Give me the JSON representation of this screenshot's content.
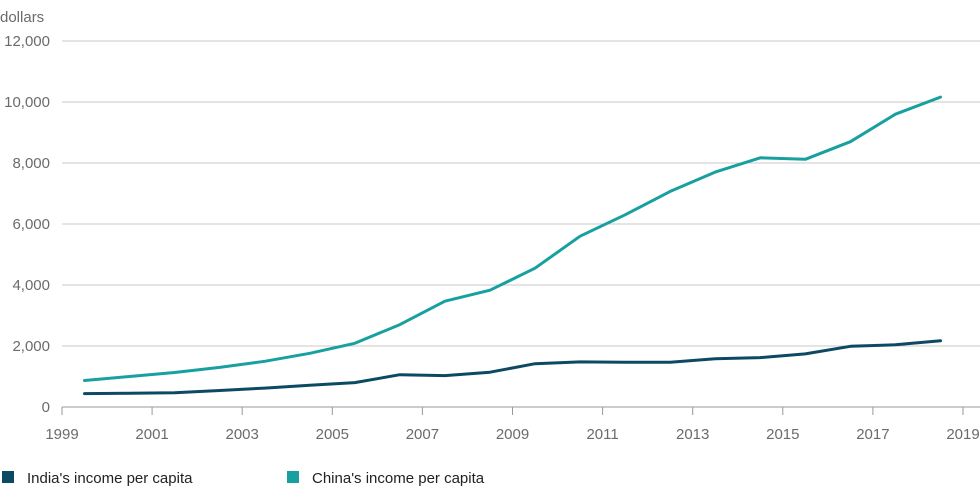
{
  "chart_data": {
    "type": "line",
    "title": "",
    "xlabel": "",
    "ylabel": "dollars",
    "ylim": [
      0,
      12000
    ],
    "xlim": [
      1999,
      2019
    ],
    "y_ticks": [
      "0",
      "2,000",
      "4,000",
      "6,000",
      "8,000",
      "10,000",
      "12,000"
    ],
    "x_ticks": [
      "1999",
      "2001",
      "2003",
      "2005",
      "2007",
      "2009",
      "2011",
      "2013",
      "2015",
      "2017",
      "2019"
    ],
    "grid": "horizontal",
    "legend_position": "bottom-left",
    "series": [
      {
        "name": "India's income per capita",
        "color": "#0c4a63",
        "x": [
          2000,
          2001,
          2002,
          2003,
          2004,
          2005,
          2006,
          2007,
          2008,
          2009,
          2010,
          2011,
          2012,
          2013,
          2014,
          2015,
          2016,
          2017,
          2018,
          2019
        ],
        "y": [
          440,
          450,
          470,
          540,
          620,
          710,
          800,
          1060,
          1030,
          1140,
          1420,
          1480,
          1470,
          1470,
          1580,
          1620,
          1740,
          1990,
          2040,
          2170
        ]
      },
      {
        "name": "China's income per capita",
        "color": "#18a0a0",
        "x": [
          2000,
          2001,
          2002,
          2003,
          2004,
          2005,
          2006,
          2007,
          2008,
          2009,
          2010,
          2011,
          2012,
          2013,
          2014,
          2015,
          2016,
          2017,
          2018,
          2019
        ],
        "y": [
          870,
          1000,
          1130,
          1300,
          1500,
          1760,
          2090,
          2700,
          3470,
          3830,
          4550,
          5600,
          6300,
          7070,
          7700,
          8170,
          8120,
          8700,
          9600,
          10160
        ]
      }
    ]
  }
}
